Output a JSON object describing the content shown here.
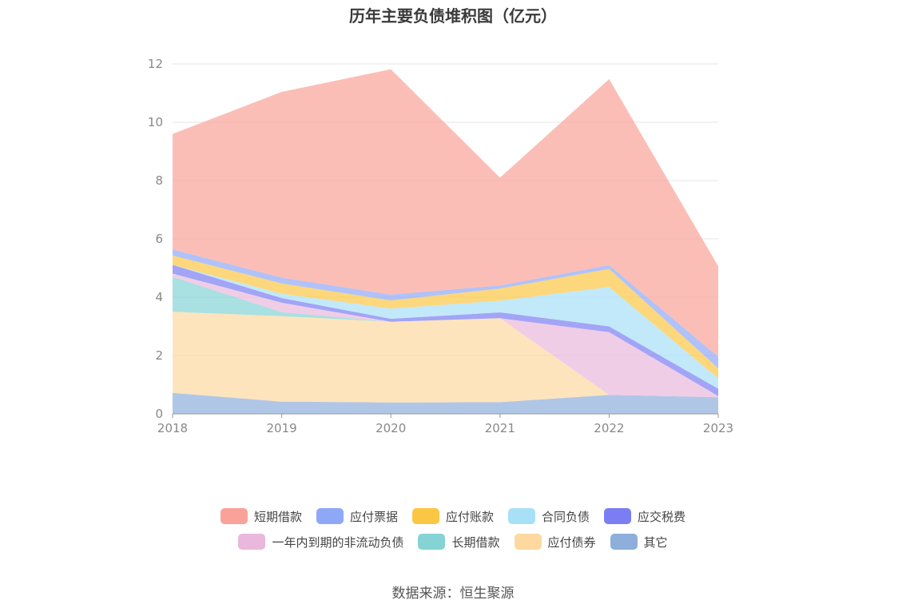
{
  "chart_data": {
    "type": "area",
    "stacked": true,
    "title": "历年主要负债堆积图（亿元）",
    "x": [
      "2018",
      "2019",
      "2020",
      "2021",
      "2022",
      "2023"
    ],
    "ylim": [
      0,
      12
    ],
    "yticks": [
      "0",
      "2",
      "4",
      "6",
      "8",
      "10",
      "12"
    ],
    "grid": true,
    "legend_position": "bottom",
    "series": [
      {
        "name": "其它",
        "color": "#8eaedb",
        "values": [
          0.72,
          0.42,
          0.39,
          0.4,
          0.65,
          0.57
        ]
      },
      {
        "name": "应付债券",
        "color": "#fdd9a0",
        "values": [
          2.78,
          2.93,
          2.77,
          2.88,
          0.0,
          0.0
        ]
      },
      {
        "name": "长期借款",
        "color": "#85d3d4",
        "values": [
          1.2,
          0.14,
          0.0,
          0.0,
          0.0,
          0.0
        ]
      },
      {
        "name": "一年内到期的非流动负债",
        "color": "#e9b8dc",
        "values": [
          0.11,
          0.32,
          0.0,
          0.0,
          2.15,
          0.04
        ]
      },
      {
        "name": "应交税费",
        "color": "#7b7ef2",
        "values": [
          0.3,
          0.16,
          0.1,
          0.2,
          0.2,
          0.25
        ]
      },
      {
        "name": "合同负债",
        "color": "#a8e0f7",
        "values": [
          0.0,
          0.15,
          0.35,
          0.4,
          1.35,
          0.35
        ]
      },
      {
        "name": "应付账款",
        "color": "#fcc645",
        "values": [
          0.32,
          0.35,
          0.28,
          0.42,
          0.62,
          0.35
        ]
      },
      {
        "name": "应付票据",
        "color": "#8ea8f7",
        "values": [
          0.21,
          0.2,
          0.2,
          0.1,
          0.13,
          0.4
        ]
      },
      {
        "name": "短期借款",
        "color": "#f9a299",
        "values": [
          3.96,
          6.37,
          7.73,
          3.7,
          6.38,
          3.1
        ]
      }
    ]
  },
  "legend": {
    "row1": [
      {
        "label": "短期借款",
        "color": "#f9a299"
      },
      {
        "label": "应付票据",
        "color": "#8ea8f7"
      },
      {
        "label": "应付账款",
        "color": "#fcc645"
      },
      {
        "label": "合同负债",
        "color": "#a8e0f7"
      },
      {
        "label": "应交税费",
        "color": "#7b7ef2"
      }
    ],
    "row2": [
      {
        "label": "一年内到期的非流动负债",
        "color": "#e9b8dc"
      },
      {
        "label": "长期借款",
        "color": "#85d3d4"
      },
      {
        "label": "应付债券",
        "color": "#fdd9a0"
      },
      {
        "label": "其它",
        "color": "#8eaedb"
      }
    ]
  },
  "source": "数据来源：恒生聚源"
}
